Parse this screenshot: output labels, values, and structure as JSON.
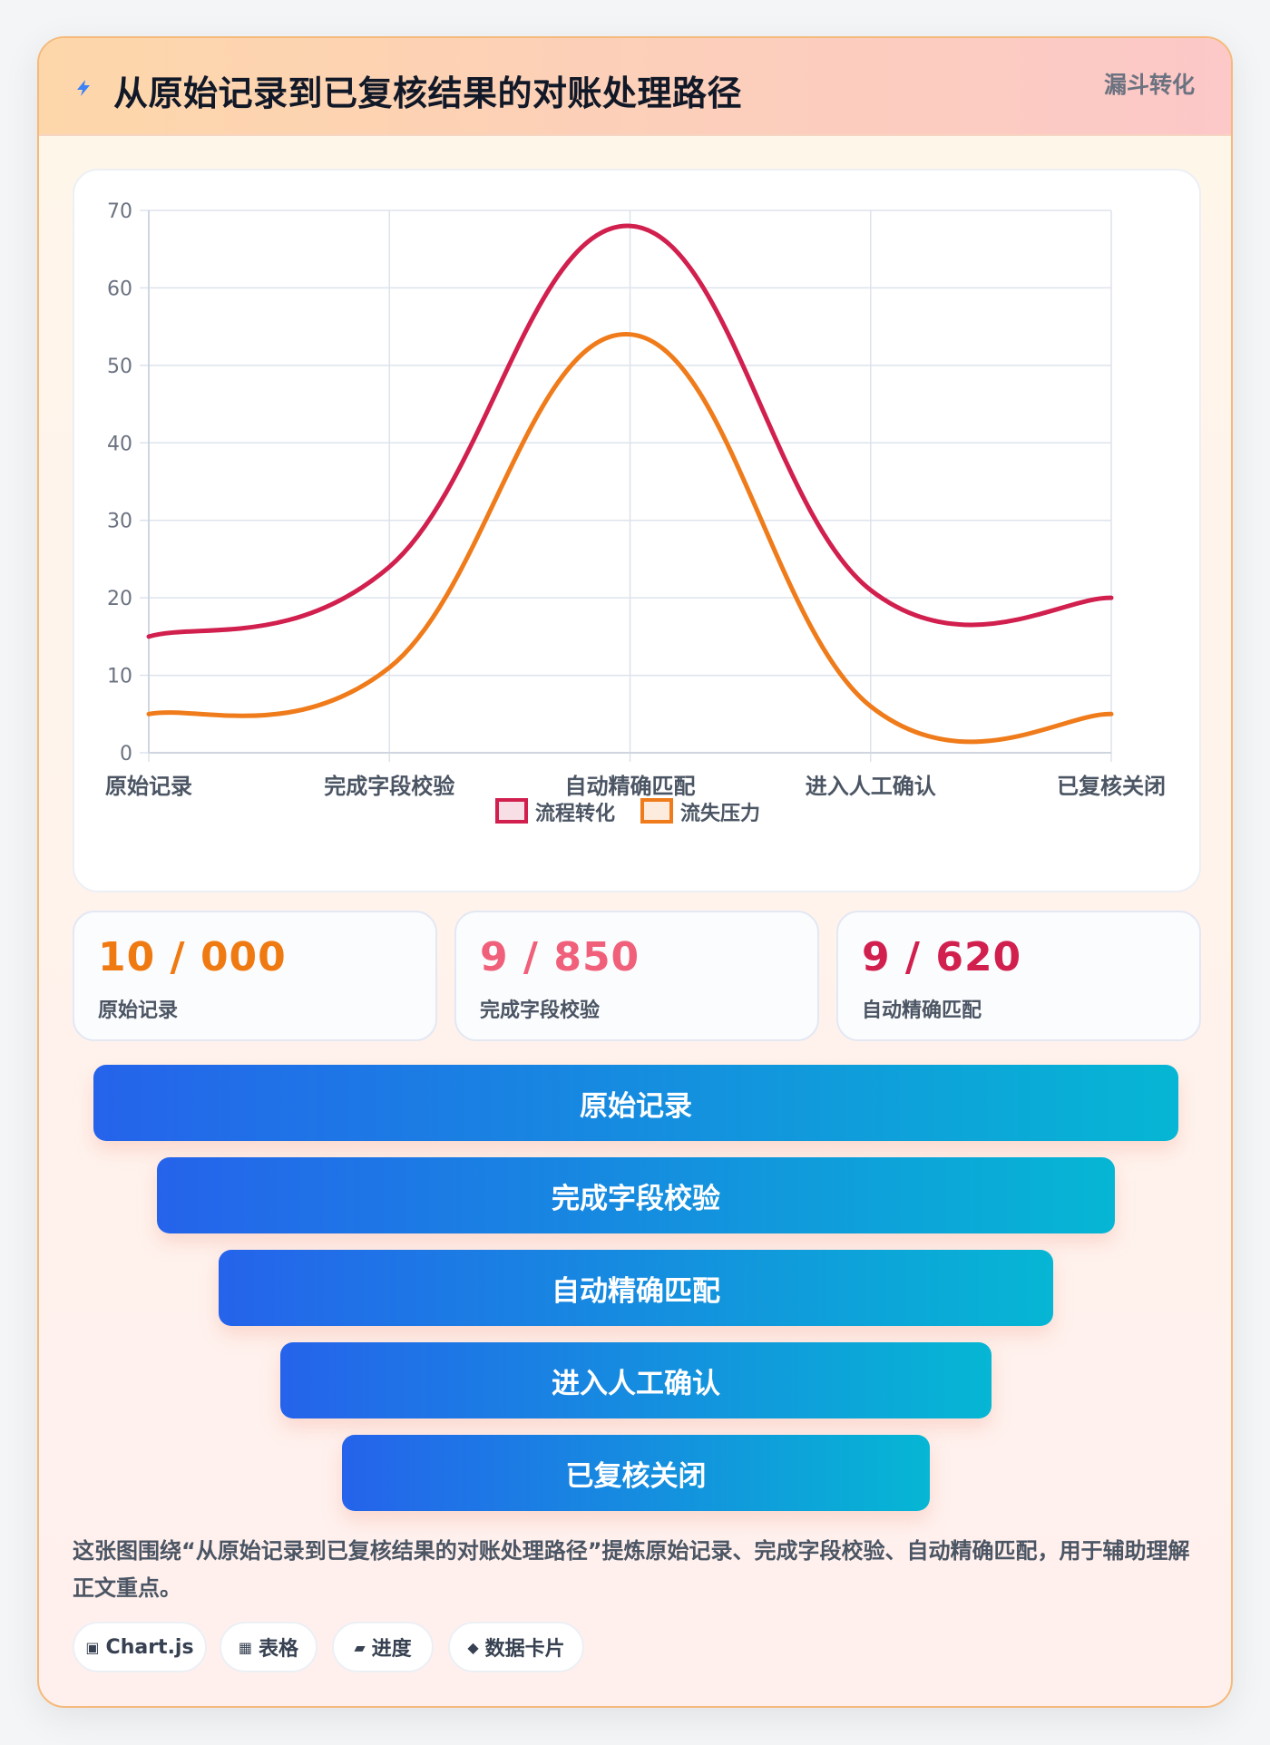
{
  "header": {
    "title": "从原始记录到已复核结果的对账处理路径",
    "tag": "漏斗转化",
    "icon": "bolt-icon"
  },
  "chart_data": {
    "type": "line",
    "categories": [
      "原始记录",
      "完成字段校验",
      "自动精确匹配",
      "进入人工确认",
      "已复核关闭"
    ],
    "series": [
      {
        "name": "流程转化",
        "values": [
          15,
          24,
          68,
          21,
          20
        ],
        "color": "#d11f4e"
      },
      {
        "name": "流失压力",
        "values": [
          5,
          11,
          54,
          6,
          5
        ],
        "color": "#ef7b1a"
      }
    ],
    "ylim": [
      0,
      70
    ],
    "yticks": [
      0,
      10,
      20,
      30,
      40,
      50,
      60,
      70
    ],
    "grid": true,
    "legend": "bottom"
  },
  "stats": [
    {
      "value": "10 / 000",
      "label": "原始记录",
      "color": "#f07a12"
    },
    {
      "value": "9 / 850",
      "label": "完成字段校验",
      "color": "#f0607a"
    },
    {
      "value": "9 / 620",
      "label": "自动精确匹配",
      "color": "#d11f4e"
    }
  ],
  "funnel": [
    "原始记录",
    "完成字段校验",
    "自动精确匹配",
    "进入人工确认",
    "已复核关闭"
  ],
  "description": "这张图围绕“从原始记录到已复核结果的对账处理路径”提炼原始记录、完成字段校验、自动精确匹配，用于辅助理解正文重点。",
  "pills": [
    {
      "icon": "▣",
      "icon_name": "chart-icon",
      "label": "Chart.js"
    },
    {
      "icon": "▦",
      "icon_name": "table-icon",
      "label": "表格"
    },
    {
      "icon": "▰",
      "icon_name": "progress-icon",
      "label": "进度"
    },
    {
      "icon": "◆",
      "icon_name": "card-icon",
      "label": "数据卡片"
    }
  ]
}
